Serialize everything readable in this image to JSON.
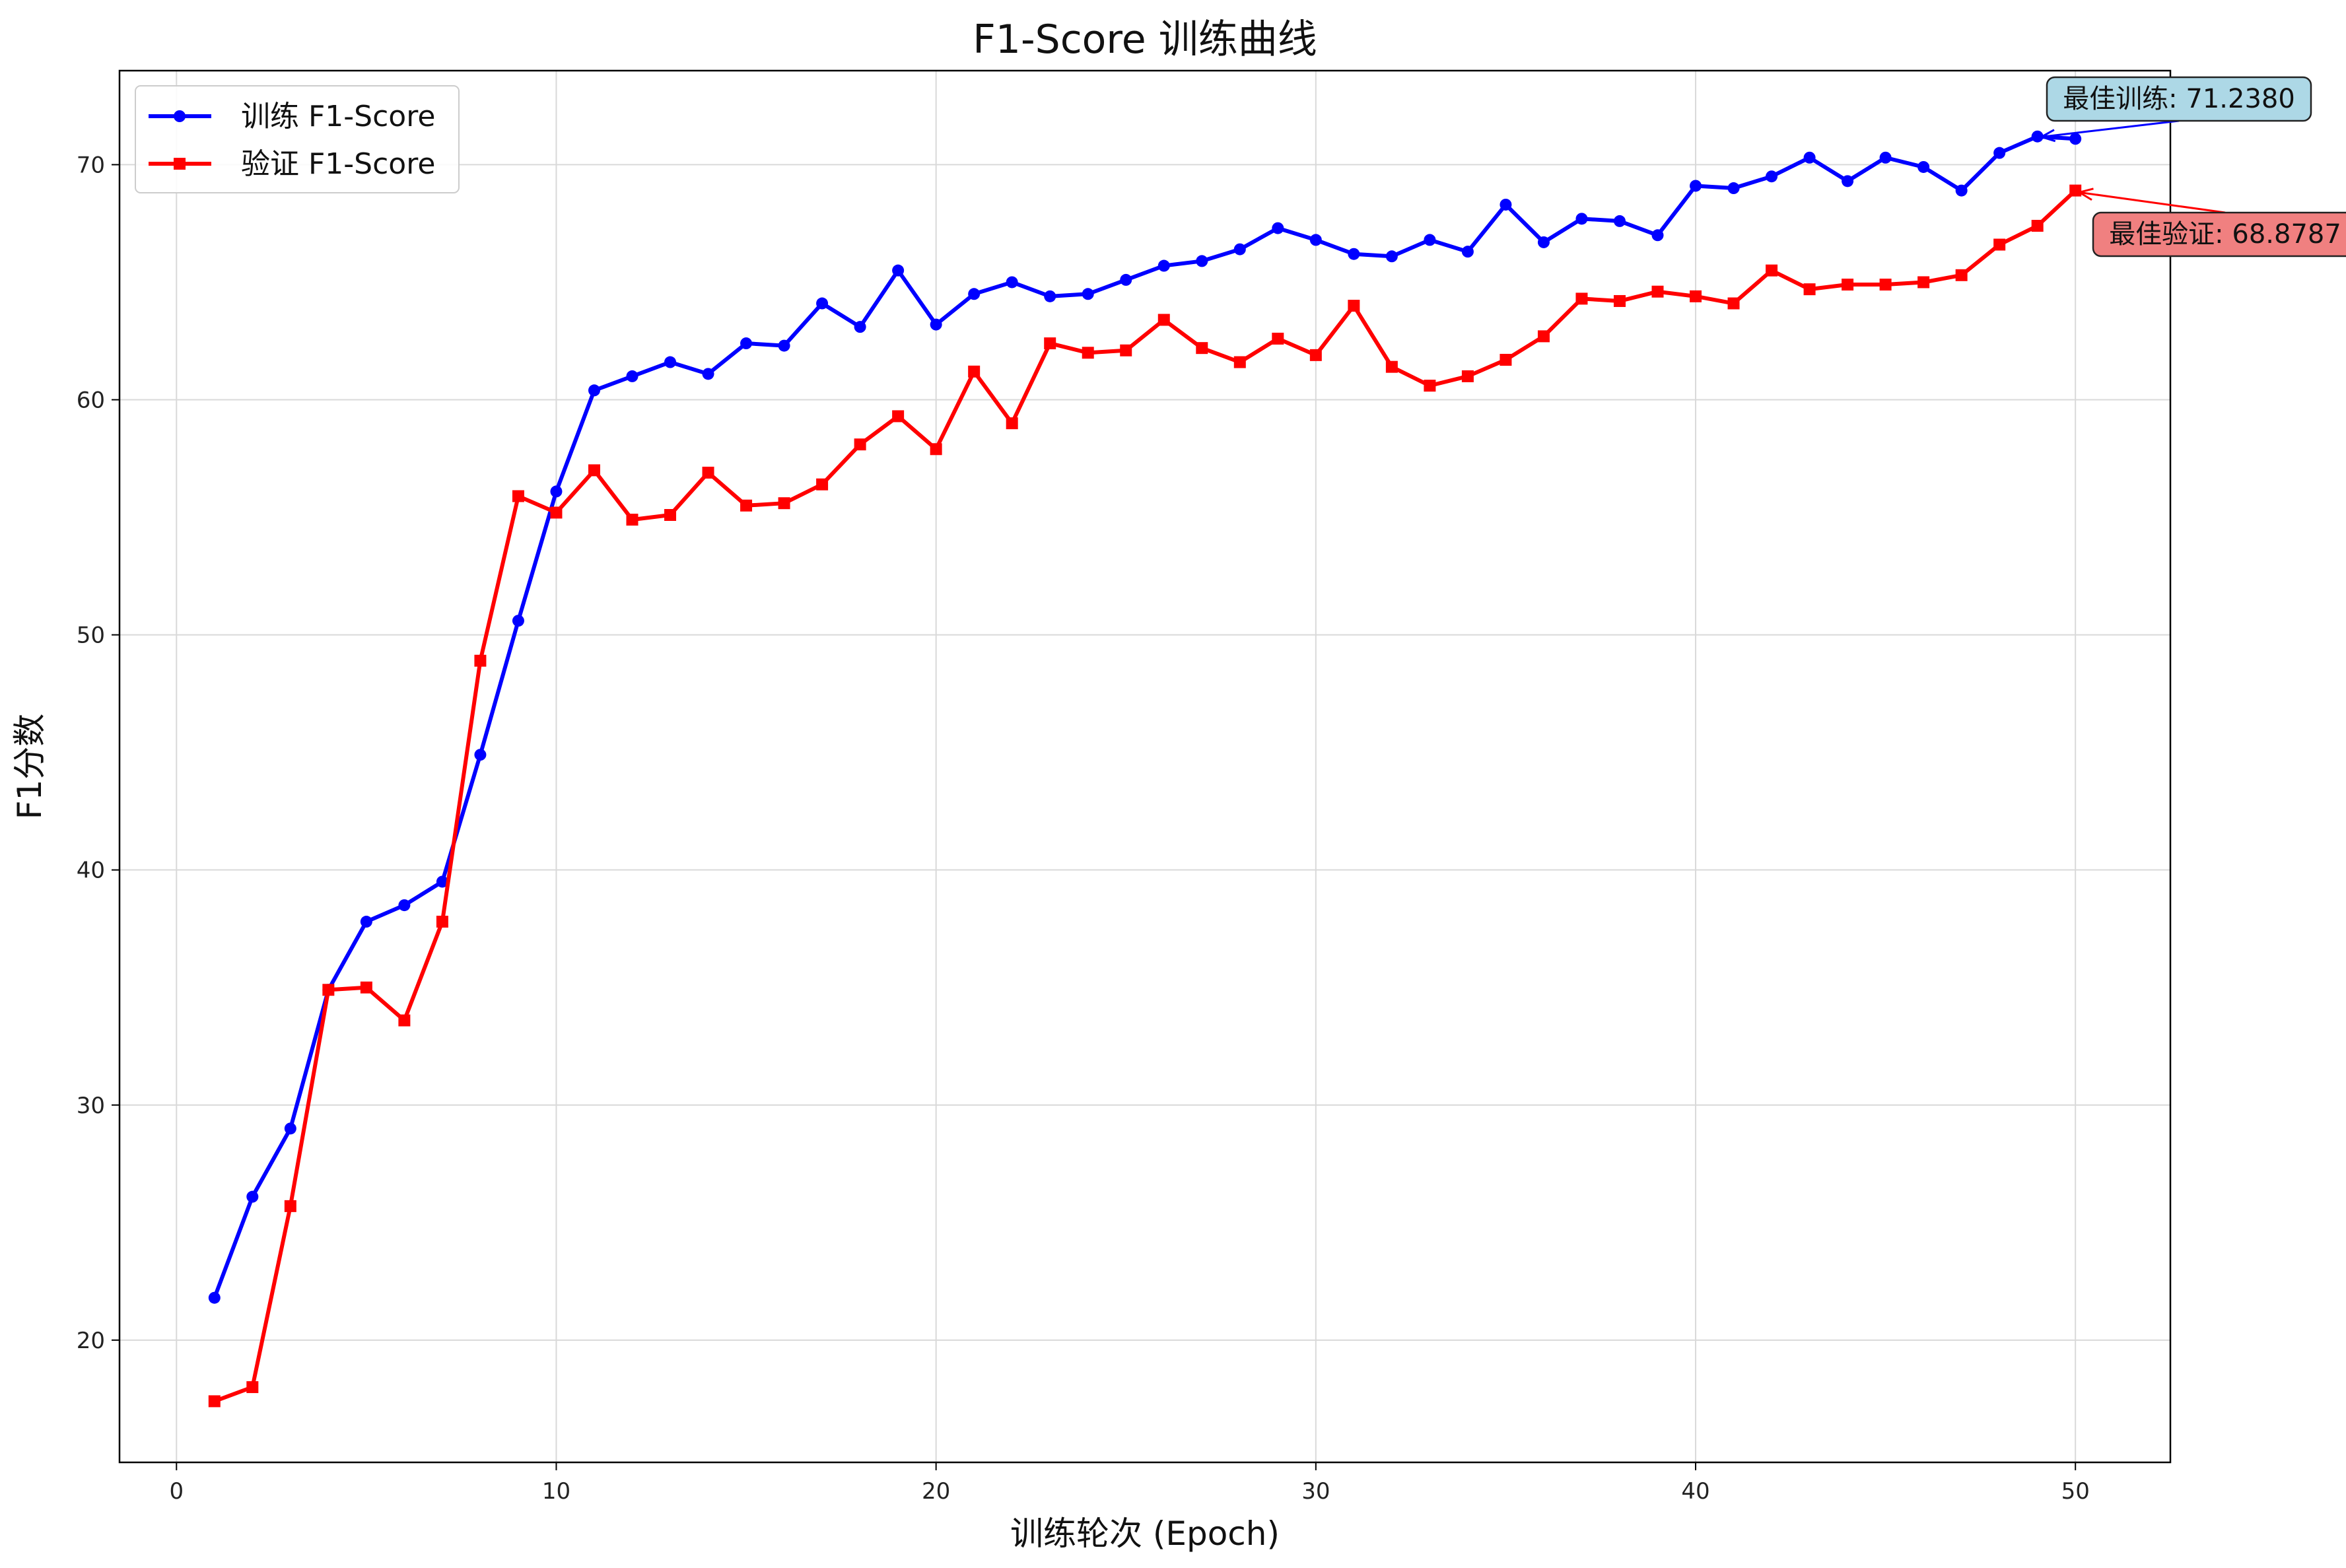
{
  "chart_data": {
    "type": "line",
    "title": "F1-Score 训练曲线",
    "xlabel": "训练轮次 (Epoch)",
    "ylabel": "F1分数",
    "xlim": [
      -1.5,
      52.5
    ],
    "ylim": [
      14.8,
      74.0
    ],
    "xticks": [
      0,
      10,
      20,
      30,
      40,
      50
    ],
    "yticks": [
      20,
      30,
      40,
      50,
      60,
      70
    ],
    "grid": true,
    "legend_position": "top-left",
    "x": [
      1,
      2,
      3,
      4,
      5,
      6,
      7,
      8,
      9,
      10,
      11,
      12,
      13,
      14,
      15,
      16,
      17,
      18,
      19,
      20,
      21,
      22,
      23,
      24,
      25,
      26,
      27,
      28,
      29,
      30,
      31,
      32,
      33,
      34,
      35,
      36,
      37,
      38,
      39,
      40,
      41,
      42,
      43,
      44,
      45,
      46,
      47,
      48,
      49,
      50
    ],
    "series": [
      {
        "name": "训练 F1-Score",
        "color": "#0000ff",
        "marker": "circle",
        "values": [
          21.8,
          26.1,
          29.0,
          34.9,
          37.8,
          38.5,
          39.5,
          44.9,
          50.6,
          56.1,
          60.4,
          61.0,
          61.6,
          61.1,
          62.4,
          62.3,
          64.1,
          63.1,
          65.5,
          63.2,
          64.5,
          65.0,
          64.4,
          64.5,
          65.1,
          65.7,
          65.9,
          66.4,
          67.3,
          66.8,
          66.2,
          66.1,
          66.8,
          66.3,
          68.3,
          66.7,
          67.7,
          67.6,
          67.0,
          69.1,
          69.0,
          69.5,
          70.3,
          69.3,
          70.3,
          69.9,
          68.9,
          70.5,
          71.2,
          71.1
        ]
      },
      {
        "name": "验证 F1-Score",
        "color": "#ff0000",
        "marker": "square",
        "values": [
          17.4,
          18.0,
          25.7,
          34.9,
          35.0,
          33.6,
          37.8,
          48.9,
          55.9,
          55.2,
          57.0,
          54.9,
          55.1,
          56.9,
          55.5,
          55.6,
          56.4,
          58.1,
          59.3,
          57.9,
          61.2,
          59.0,
          62.4,
          62.0,
          62.1,
          63.4,
          62.2,
          61.6,
          62.6,
          61.9,
          64.0,
          61.4,
          60.6,
          61.0,
          61.7,
          62.7,
          64.3,
          64.2,
          64.6,
          64.4,
          64.1,
          65.5,
          64.7,
          64.9,
          64.9,
          65.0,
          65.3,
          66.6,
          67.4,
          68.9
        ]
      }
    ],
    "annotations": [
      {
        "text": "最佳训练: 71.2380",
        "x": 49,
        "y": 71.238,
        "box_color": "#add8e6",
        "arrow_color": "#0000ff"
      },
      {
        "text": "最佳验证: 68.8787",
        "x": 50,
        "y": 68.8787,
        "box_color": "#f08080",
        "arrow_color": "#ff0000"
      }
    ]
  }
}
